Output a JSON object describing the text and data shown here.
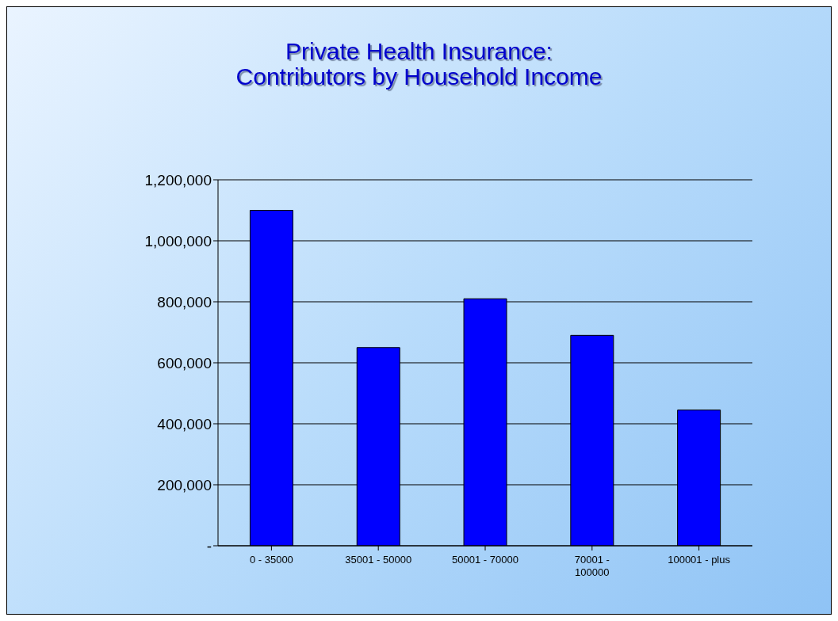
{
  "chart_data": {
    "type": "bar",
    "title": "Private Health Insurance:\nContributors by Household Income",
    "categories": [
      "0 - 35000",
      "35001 - 50000",
      "50001 - 70000",
      "70001 - 100000",
      "100001 - plus"
    ],
    "values": [
      1100000,
      650000,
      810000,
      690000,
      445000
    ],
    "color": "#0000ff",
    "ylim": [
      0,
      1200000
    ],
    "yticks": [
      {
        "value": 0,
        "label": "-"
      },
      {
        "value": 200000,
        "label": "200,000"
      },
      {
        "value": 400000,
        "label": "400,000"
      },
      {
        "value": 600000,
        "label": "600,000"
      },
      {
        "value": 800000,
        "label": "800,000"
      },
      {
        "value": 1000000,
        "label": "1,000,000"
      },
      {
        "value": 1200000,
        "label": "1,200,000"
      }
    ],
    "grid": "y"
  }
}
